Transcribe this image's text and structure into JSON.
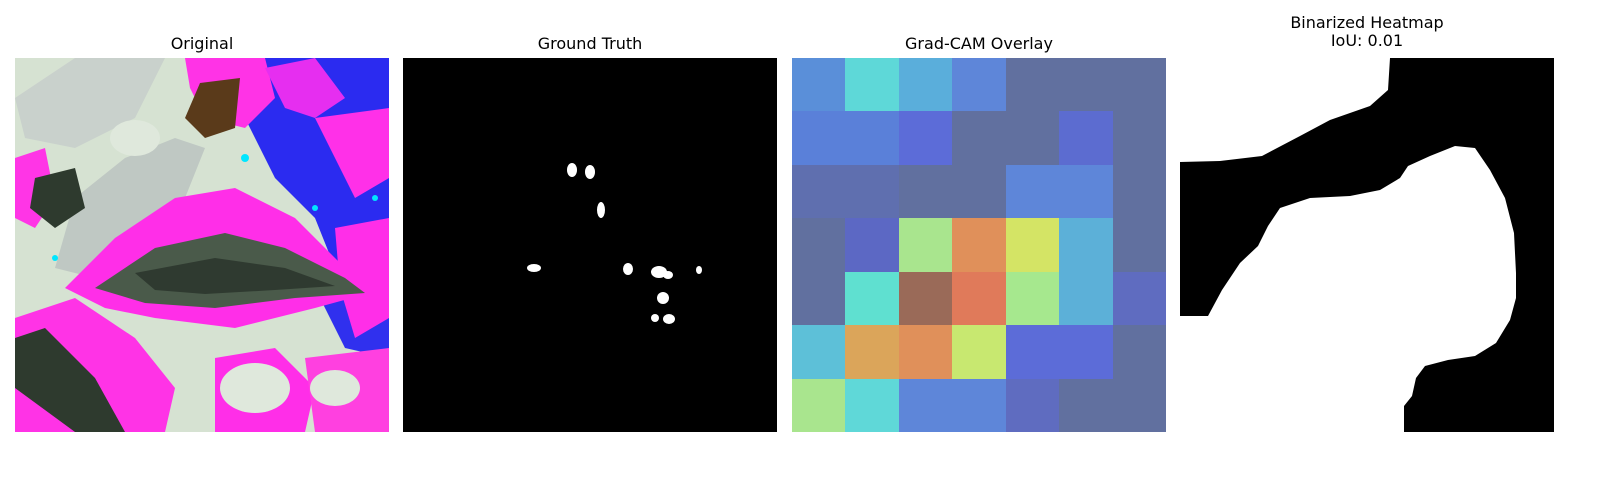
{
  "panels": {
    "original": {
      "title": "Original"
    },
    "ground_truth": {
      "title": "Ground Truth"
    },
    "gradcam": {
      "title": "Grad-CAM Overlay",
      "cells": [
        [
          "#5a8fd9",
          "#5ed8d8",
          "#5aaedb",
          "#5e86d9",
          "#61709f",
          "#61709f",
          "#61709f"
        ],
        [
          "#5a80d9",
          "#5a80d9",
          "#5c6cd8",
          "#61709f",
          "#61709f",
          "#5c6cd0",
          "#61709f"
        ],
        [
          "#5f6faf",
          "#5f6faf",
          "#61709f",
          "#61709f",
          "#5e86d9",
          "#5e86d9",
          "#61709f"
        ],
        [
          "#61709f",
          "#5c68c4",
          "#a9e58e",
          "#e0905a",
          "#d4e465",
          "#5cb0d8",
          "#61709f"
        ],
        [
          "#61709f",
          "#5fe0d0",
          "#9a6a58",
          "#e07a5a",
          "#a6e88e",
          "#5cb0d8",
          "#5f6cc0"
        ],
        [
          "#5dc0d8",
          "#dba55a",
          "#e0905a",
          "#c8e870",
          "#5c6cd8",
          "#5c6cd8",
          "#61709f"
        ],
        [
          "#a9e58e",
          "#5fd8d8",
          "#5e86d9",
          "#5e86d9",
          "#5f6cc0",
          "#61709f",
          "#61709f"
        ]
      ]
    },
    "heatmap": {
      "title_line1": "Binarized Heatmap",
      "title_line2": "IoU: 0.01"
    }
  },
  "colors": {
    "background": "#ffffff",
    "mask_fg": "#ffffff",
    "mask_bg": "#000000",
    "magenta": "#ff2ee8",
    "blue": "#2b2bf0",
    "pale": "#d8e4d4",
    "dark_leaf": "#3a4a3a",
    "brown": "#5a3a1a"
  }
}
